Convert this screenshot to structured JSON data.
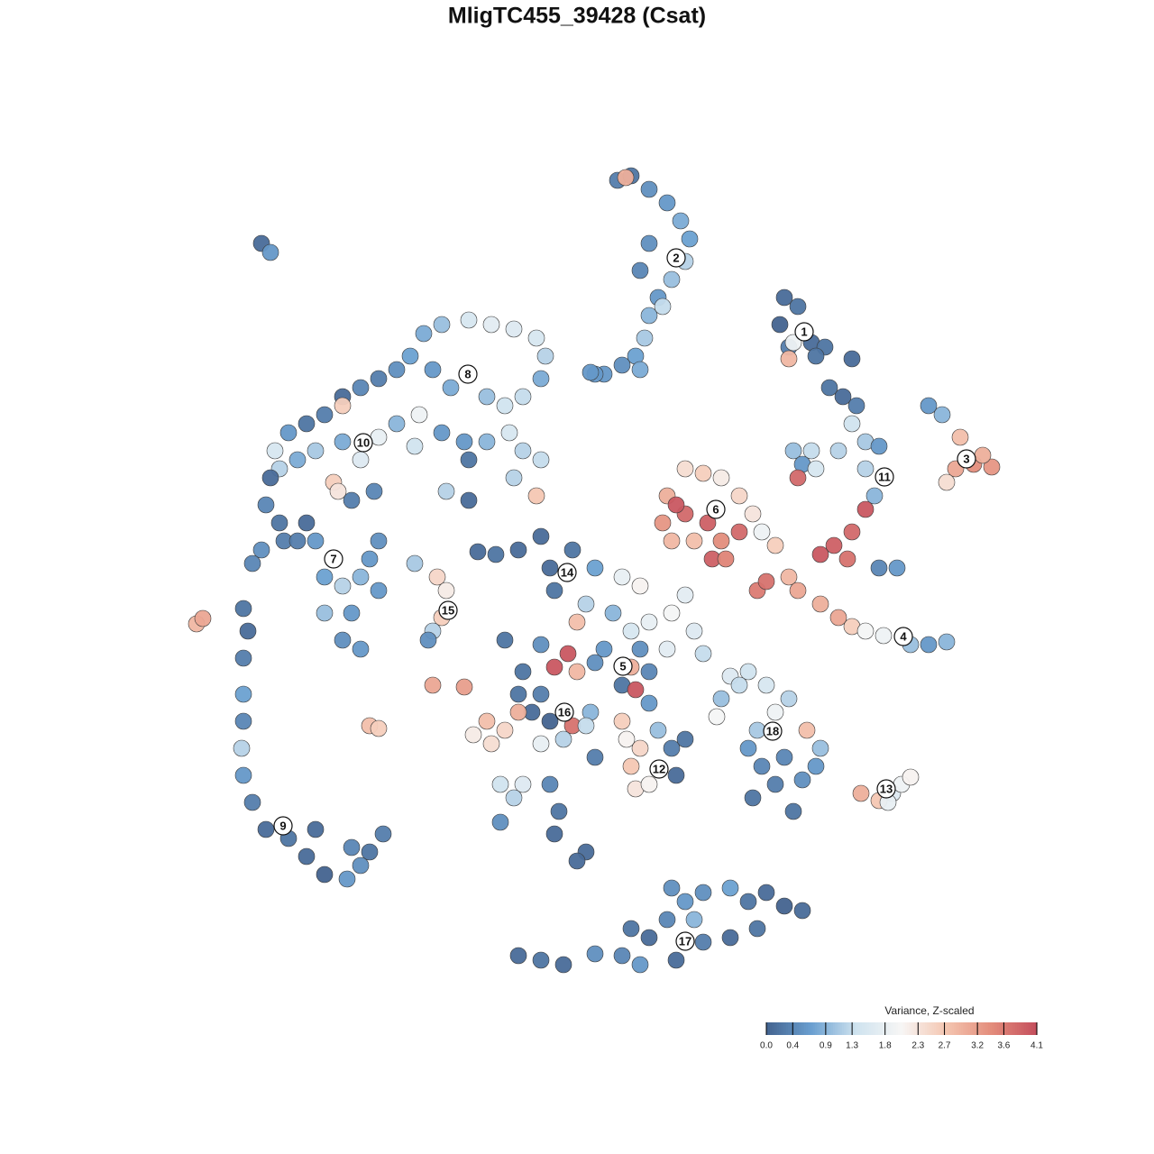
{
  "chart_data": {
    "type": "scatter",
    "title": "MligTC455_39428 (Csat)",
    "xlim": [
      -64,
      64
    ],
    "ylim": [
      -64,
      64
    ],
    "x": [
      4.5,
      6.0,
      8.0,
      10.0,
      11.5,
      12.5,
      12.0,
      10.5,
      9.0,
      8.0,
      7.5,
      6.5,
      5.0,
      3.0,
      7.0,
      9.5,
      8.0,
      7.0,
      5.4,
      2.0,
      23.0,
      24.5,
      22.5,
      23.5,
      26.0,
      27.5,
      24.0,
      23.5,
      26.5,
      30.5,
      39.0,
      40.5,
      42.5,
      44.0,
      46.0,
      42.0,
      41.0,
      45.0,
      28.0,
      29.5,
      31.0,
      30.5,
      32.0,
      33.5,
      29.0,
      26.0,
      24.0,
      25.0,
      26.5,
      32.0,
      33.0,
      32.0,
      30.5,
      28.5,
      27.0,
      30.0,
      24.5,
      33.5,
      35.5,
      22.0,
      23.5,
      24.5,
      27.0,
      29.0,
      30.5,
      32.0,
      34.0,
      37.0,
      39.0,
      41.0,
      20.0,
      21.0,
      12.0,
      14.0,
      16.0,
      18.0,
      10.0,
      9.5,
      10.5,
      12.0,
      14.5,
      16.0,
      18.0,
      15.0,
      13.0,
      19.5,
      20.5,
      16.5,
      11.0,
      -11.0,
      -9.0,
      -6.5,
      -4.0,
      -3.0,
      -0.5,
      2.0,
      5.0,
      7.0,
      -2.5,
      1.0,
      4.0,
      6.0,
      8.0,
      10.5,
      12.0,
      13.0,
      14.0,
      10.0,
      7.0,
      3.0,
      -1.0,
      -2.5,
      0.0,
      2.0,
      5.0,
      6.5,
      8.0,
      -4.0,
      -8.0,
      -6.0,
      -4.0,
      0.0,
      6.0,
      17.0,
      19.0,
      15.5,
      8.0,
      -6.5,
      -5.0,
      -3.0,
      -0.5,
      1.5,
      1.0,
      -1.5,
      -4.0,
      -8.0,
      -10.0,
      -11.5,
      -9.5,
      -6.5,
      -16.0,
      -12.5,
      -8.5,
      -6.0,
      -3.0,
      -7.0,
      -2.0,
      -8.5,
      -2.5,
      1.0,
      0.0,
      5.5,
      7.0,
      6.0,
      6.5,
      8.0,
      10.5,
      12.0,
      11.0,
      9.0,
      2.0,
      5.0,
      16.0,
      18.0,
      21.0,
      23.5,
      22.0,
      20.0,
      19.0,
      20.5,
      22.0,
      19.5,
      24.0,
      25.5,
      27.0,
      26.5,
      25.0,
      23.0,
      31.5,
      33.5,
      35.0,
      36.0,
      37.0,
      34.5,
      -18.0,
      -15.5,
      -14.5,
      -15.0,
      -16.0,
      -16.5,
      -17.0,
      -15.0,
      -12.0,
      -9.5,
      -7.0,
      -4.5,
      -3.5,
      -4.0,
      -6.0,
      -8.0,
      -10.0,
      -14.0,
      -16.0,
      -18.5,
      -20.0,
      -22.0,
      -24.0,
      -26.0,
      -28.0,
      -30.0,
      -32.0,
      -33.5,
      -33.0,
      -31.0,
      -29.0,
      -26.0,
      -24.0,
      -22.0,
      -20.0,
      -17.5,
      -18.0,
      -15.0,
      -12.5,
      -10.0,
      -7.5,
      -6.0,
      -4.0,
      -4.5,
      -7.0,
      -12.0,
      -14.5,
      -12.0,
      -26.0,
      -27.0,
      -26.5,
      -34.0,
      -34.5,
      -33.0,
      -35.0,
      -36.0,
      -32.5,
      -30.0,
      -29.0,
      -28.0,
      -26.0,
      -24.0,
      -22.0,
      -25.0,
      -26.0,
      -24.0,
      -28.0,
      -31.0,
      -23.0,
      -22.0,
      -25.0,
      -22.5,
      -37.0,
      -36.5,
      -37.0,
      -37.0,
      -37.0,
      -37.2,
      -37.0,
      -36.0,
      -34.5,
      -32.0,
      -30.0,
      -28.0,
      -25.5,
      -24.0,
      -23.0,
      -21.5,
      -29.0,
      -25.0,
      -6.5,
      -4.0,
      -1.5,
      2.0,
      5.0,
      7.0,
      8.0,
      10.0,
      12.0,
      14.0,
      17.0,
      19.0,
      21.0,
      23.0,
      25.0,
      20.0,
      17.0,
      14.0,
      10.5,
      13.0,
      11.0,
      6.0,
      -35.0,
      -34.0,
      -42.2,
      -41.5,
      -23.0,
      -22.0,
      1.5
    ],
    "y": [
      44.0,
      44.5,
      43.0,
      41.5,
      39.5,
      37.5,
      35.0,
      33.0,
      31.0,
      29.0,
      26.5,
      24.5,
      23.5,
      22.5,
      23.0,
      30.0,
      37.0,
      34.0,
      44.3,
      22.5,
      31.0,
      30.0,
      28.0,
      25.5,
      26.0,
      25.5,
      26.0,
      24.2,
      24.5,
      24.2,
      19.0,
      18.0,
      15.5,
      12.5,
      12.2,
      12.0,
      10.5,
      13.5,
      21.0,
      20.0,
      19.0,
      17.0,
      15.0,
      14.5,
      14.0,
      14.0,
      14.0,
      12.5,
      12.0,
      12.0,
      9.0,
      7.5,
      5.0,
      3.5,
      2.5,
      2.0,
      11.0,
      1.0,
      1.0,
      3.5,
      0.0,
      -1.5,
      -3.0,
      -4.5,
      -5.5,
      -6.0,
      -6.5,
      -7.5,
      -7.5,
      -7.2,
      -1.5,
      -0.5,
      12.0,
      11.5,
      11.0,
      9.0,
      9.0,
      6.0,
      4.0,
      7.0,
      6.0,
      4.0,
      5.0,
      2.0,
      4.0,
      7.0,
      5.0,
      2.0,
      8.0,
      2.8,
      2.5,
      3.0,
      4.5,
      1.0,
      3.0,
      1.0,
      0.0,
      -1.0,
      -1.5,
      -3.0,
      -4.0,
      -6.0,
      -5.0,
      -4.0,
      -2.0,
      -6.0,
      -8.5,
      -8.0,
      -8.0,
      -8.0,
      -8.5,
      -10.0,
      -10.5,
      -9.5,
      -12.0,
      -12.5,
      -10.5,
      -7.5,
      -7.0,
      -10.5,
      -13.0,
      -5.0,
      -10.0,
      -11.0,
      -10.5,
      -15.5,
      -14.0,
      -13.0,
      -15.0,
      -16.0,
      -16.5,
      -15.0,
      -16.5,
      -18.0,
      -18.5,
      -17.0,
      -16.0,
      -17.5,
      -18.5,
      -15.0,
      -12.0,
      -12.2,
      -23.0,
      -23.0,
      -23.0,
      -24.5,
      -26.0,
      -27.2,
      -28.5,
      -30.5,
      -31.5,
      -18.0,
      -19.0,
      -21.0,
      -23.5,
      -23.0,
      -19.0,
      -18.0,
      -22.0,
      -17.0,
      -20.0,
      -16.0,
      -13.5,
      -12.0,
      -12.0,
      -13.5,
      -15.0,
      -17.0,
      -19.0,
      -21.0,
      -23.0,
      -24.5,
      -26.0,
      -17.0,
      -19.0,
      -21.0,
      -22.5,
      -20.0,
      -24.0,
      -24.8,
      -24.0,
      -23.0,
      -22.2,
      -25.0,
      1.5,
      0.0,
      -1.5,
      -4.5,
      -6.0,
      -7.0,
      27.0,
      28.0,
      28.5,
      28.0,
      27.5,
      26.5,
      24.5,
      22.0,
      20.0,
      19.0,
      20.0,
      21.0,
      23.0,
      24.5,
      23.0,
      22.0,
      21.0,
      20.0,
      18.0,
      17.0,
      16.0,
      14.0,
      12.0,
      13.0,
      14.0,
      15.0,
      13.0,
      15.5,
      17.0,
      18.0,
      14.5,
      16.0,
      15.0,
      15.0,
      16.0,
      14.0,
      13.0,
      9.0,
      11.0,
      13.0,
      9.5,
      8.5,
      19.0,
      10.5,
      9.5,
      11.0,
      8.0,
      6.0,
      3.0,
      1.5,
      4.0,
      6.0,
      4.0,
      0.0,
      -1.0,
      0.0,
      -1.5,
      -4.0,
      -7.0,
      -8.0,
      -4.0,
      4.0,
      2.0,
      4.0,
      8.5,
      9.5,
      -3.5,
      -6.0,
      -9.0,
      -13.0,
      -16.0,
      -19.0,
      -22.0,
      -25.0,
      -28.0,
      -29.0,
      -31.0,
      -33.0,
      -33.5,
      -32.0,
      -30.5,
      -28.5,
      -28.0,
      -30.0,
      -42.0,
      -42.5,
      -43.0,
      -41.8,
      -42.0,
      -43.0,
      -40.0,
      -38.0,
      -36.0,
      -35.0,
      -34.5,
      -36.0,
      -35.0,
      -36.5,
      -37.0,
      -39.0,
      -40.0,
      -40.5,
      -34.5,
      -38.0,
      -42.5,
      -39.0,
      37.0,
      36.0,
      -5.2,
      -4.6,
      -16.5,
      -16.8,
      22.7
    ],
    "values": [
      0.3,
      0.2,
      0.5,
      0.6,
      0.8,
      0.7,
      1.2,
      1.0,
      0.6,
      0.9,
      1.1,
      0.7,
      0.5,
      0.6,
      0.8,
      1.3,
      0.5,
      0.4,
      3.0,
      0.6,
      0.1,
      0.2,
      0.0,
      0.3,
      0.1,
      0.2,
      1.9,
      2.9,
      0.2,
      0.1,
      0.6,
      0.9,
      2.8,
      3.4,
      3.3,
      3.1,
      2.4,
      3.0,
      0.2,
      0.1,
      0.3,
      1.4,
      1.1,
      0.6,
      1.2,
      1.3,
      1.0,
      0.6,
      1.5,
      1.2,
      0.9,
      4.0,
      3.8,
      3.9,
      4.0,
      3.7,
      3.8,
      0.4,
      0.6,
      2.6,
      2.9,
      3.1,
      3.0,
      3.1,
      2.6,
      2.0,
      1.9,
      1.0,
      0.6,
      0.9,
      3.6,
      3.7,
      2.4,
      2.6,
      2.2,
      2.5,
      3.0,
      3.3,
      2.9,
      3.8,
      3.9,
      3.4,
      3.8,
      3.9,
      2.8,
      2.3,
      1.9,
      3.5,
      4.0,
      0.1,
      0.2,
      0.1,
      0.1,
      0.1,
      0.2,
      0.7,
      1.8,
      2.1,
      0.2,
      1.2,
      0.9,
      1.5,
      1.8,
      2.0,
      1.7,
      1.6,
      1.3,
      1.7,
      0.5,
      0.6,
      4.0,
      4.0,
      2.9,
      0.5,
      0.2,
      4.0,
      0.4,
      0.5,
      0.2,
      0.2,
      0.3,
      2.8,
      3.0,
      1.6,
      1.4,
      2.0,
      0.6,
      0.2,
      0.1,
      0.0,
      3.7,
      0.9,
      1.3,
      1.2,
      1.8,
      2.5,
      2.8,
      2.2,
      2.4,
      3.0,
      3.1,
      3.2,
      1.4,
      1.6,
      0.4,
      1.2,
      0.2,
      0.5,
      0.1,
      0.1,
      0.1,
      2.1,
      2.5,
      2.7,
      2.3,
      2.1,
      0.3,
      0.2,
      0.1,
      1.0,
      0.3,
      2.6,
      1.0,
      1.3,
      1.5,
      1.2,
      1.9,
      1.1,
      0.6,
      0.4,
      0.3,
      0.2,
      0.2,
      2.8,
      1.0,
      0.6,
      0.5,
      0.4,
      3.0,
      2.7,
      1.6,
      1.9,
      2.1,
      1.8,
      1.1,
      2.5,
      2.2,
      2.6,
      1.2,
      0.5,
      0.8,
      1.0,
      1.5,
      1.7,
      1.6,
      1.5,
      1.2,
      0.8,
      1.3,
      1.4,
      1.0,
      0.8,
      0.6,
      0.7,
      0.5,
      0.3,
      0.4,
      0.1,
      0.3,
      0.2,
      0.6,
      1.5,
      1.2,
      0.8,
      1.1,
      0.8,
      1.6,
      1.8,
      0.9,
      1.9,
      1.4,
      0.6,
      0.6,
      0.9,
      1.5,
      1.2,
      1.3,
      2.7,
      1.2,
      0.2,
      1.2,
      0.1,
      2.6,
      2.6,
      2.3,
      0.1,
      0.4,
      0.2,
      0.5,
      0.4,
      0.3,
      0.1,
      0.6,
      0.7,
      1.2,
      0.9,
      0.6,
      0.6,
      0.5,
      0.6,
      1.0,
      0.3,
      0.6,
      0.5,
      0.3,
      0.4,
      0.2,
      0.1,
      0.3,
      0.7,
      0.4,
      1.2,
      0.6,
      0.3,
      0.1,
      0.2,
      0.1,
      0.0,
      0.6,
      0.5,
      0.2,
      0.3,
      0.1,
      0.4,
      0.1,
      0.2,
      0.1,
      0.5,
      0.4,
      0.6,
      0.1,
      0.4,
      0.6,
      0.5,
      0.7,
      0.2,
      0.1,
      0.0,
      0.1,
      0.2,
      0.1,
      0.3,
      0.5,
      0.9,
      0.1,
      0.2,
      0.1,
      0.6,
      2.9,
      3.1,
      2.8,
      2.6,
      0.6
    ],
    "clusters": {
      "labels": [
        "1",
        "2",
        "3",
        "4",
        "5",
        "6",
        "7",
        "8",
        "9",
        "10",
        "11",
        "12",
        "13",
        "14",
        "15",
        "16",
        "17",
        "18"
      ],
      "x": [
        25.2,
        11.0,
        43.2,
        36.2,
        5.1,
        15.4,
        -27.0,
        -12.1,
        -32.6,
        -23.7,
        34.1,
        9.1,
        34.3,
        -1.1,
        -14.3,
        -1.4,
        12.0,
        21.7
      ],
      "y": [
        27.2,
        35.4,
        13.1,
        -6.6,
        -9.9,
        7.5,
        2.0,
        22.5,
        -27.6,
        14.9,
        11.1,
        -21.3,
        -23.5,
        0.5,
        -3.7,
        -15.0,
        -40.4,
        -17.1
      ]
    },
    "colorbar_label": "Variance, Z-scaled",
    "clim": [
      0,
      4.1
    ],
    "colors": [
      "#43638f",
      "#6a9fd0",
      "#cfe3ef",
      "#f7f6f5",
      "#f4c5b0",
      "#e38c7b",
      "#c44e5c"
    ],
    "cticks": [
      {
        "value": 0,
        "label": "0.0"
      },
      0.4,
      0.9,
      1.3,
      1.8,
      2.3,
      2.7,
      3.2,
      3.6,
      4.1
    ]
  }
}
